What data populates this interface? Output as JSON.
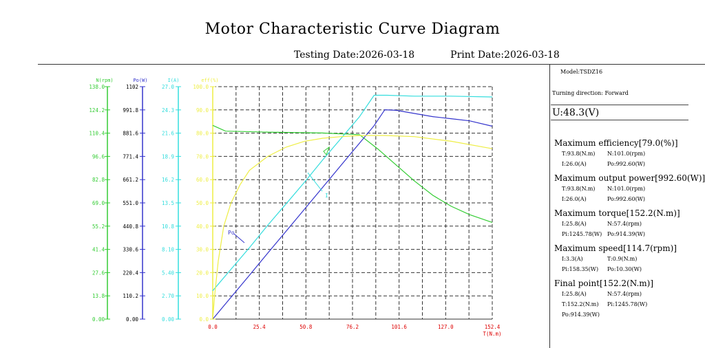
{
  "header": {
    "title": "Motor Characteristic Curve Diagram",
    "testing_date": "Testing Date:2026-03-18",
    "print_date": "Print Date:2026-03-18"
  },
  "panel": {
    "model": "Model:TSDZ16",
    "direction": "Turning direction: Forward",
    "voltage": "U:48.3(V)",
    "sections": [
      {
        "heading": "Maximum efficiency[79.0(%)]",
        "rows": [
          [
            "T:93.8(N.m)",
            "N:101.0(rpm)"
          ],
          [
            "I:26.0(A)",
            "Po:992.60(W)"
          ]
        ]
      },
      {
        "heading": "Maximum output power[992.60(W)]",
        "rows": [
          [
            "T:93.8(N.m)",
            "N:101.0(rpm)"
          ],
          [
            "I:26.0(A)",
            "Po:992.60(W)"
          ]
        ]
      },
      {
        "heading": "Maximum torque[152.2(N.m)]",
        "rows": [
          [
            "I:25.8(A)",
            "N:57.4(rpm)"
          ],
          [
            "Pi:1245.78(W)",
            "Po:914.39(W)"
          ]
        ]
      },
      {
        "heading": "Maximum speed[114.7(rpm)]",
        "rows": [
          [
            "I:3.3(A)",
            "T:0.9(N.m)"
          ],
          [
            "Pi:158.35(W)",
            "Po:10.30(W)"
          ]
        ]
      },
      {
        "heading": "Final point[152.2(N.m)]",
        "rows": [
          [
            "I:25.8(A)",
            "N:57.4(rpm)"
          ],
          [
            "T:152.2(N.m)",
            "Pi:1245.78(W)"
          ],
          [
            "Po:914.39(W)",
            ""
          ]
        ]
      }
    ]
  },
  "colors": {
    "speed": "#33cc33",
    "power": "#3333cc",
    "current": "#33dddd",
    "efficiency": "#eeee44",
    "grid": "#333333",
    "xaxis": "#dd0000"
  },
  "chart_data": {
    "type": "line",
    "xlabel": "T(N.m)",
    "xlim": [
      0,
      152.4
    ],
    "x_ticks": [
      "0.0",
      "25.4",
      "50.8",
      "76.2",
      "101.6",
      "127.0",
      "152.4"
    ],
    "axes": [
      {
        "key": "speed",
        "label": "N(rpm)",
        "ylim": [
          0,
          138.0
        ],
        "ticks": [
          "0.00",
          "13.8",
          "27.6",
          "41.4",
          "55.2",
          "69.0",
          "82.8",
          "96.6",
          "110.4",
          "124.2",
          "138.0"
        ]
      },
      {
        "key": "power",
        "label": "Po(W)",
        "ylim": [
          0,
          1102
        ],
        "ticks": [
          "0.00",
          "110.2",
          "220.4",
          "330.6",
          "440.8",
          "551.0",
          "661.2",
          "771.4",
          "881.6",
          "991.8",
          "1102"
        ]
      },
      {
        "key": "current",
        "label": "I(A)",
        "ylim": [
          0,
          27.0
        ],
        "ticks": [
          "0.00",
          "2.70",
          "5.40",
          "8.10",
          "10.8",
          "13.5",
          "16.2",
          "18.9",
          "21.6",
          "24.3",
          "27.0"
        ]
      },
      {
        "key": "efficiency",
        "label": "eff(%)",
        "ylim": [
          0,
          100.0
        ],
        "ticks": [
          "0.0",
          "10.0",
          "20.0",
          "30.0",
          "40.0",
          "50.0",
          "60.0",
          "70.0",
          "80.0",
          "90.0",
          "100.0"
        ]
      }
    ],
    "series": [
      {
        "key": "speed",
        "x": [
          0,
          7,
          30,
          60,
          70,
          80,
          90,
          100,
          110,
          120,
          130,
          140,
          152.4
        ],
        "y": [
          115,
          111.6,
          111.0,
          110.5,
          110.0,
          109.5,
          101.0,
          91.5,
          82.0,
          73.5,
          67.0,
          62.0,
          57.4
        ]
      },
      {
        "key": "power",
        "x": [
          0,
          10,
          20,
          30,
          40,
          50,
          60,
          70,
          80,
          88,
          93.8,
          100,
          110,
          120,
          130,
          140,
          152.4
        ],
        "y": [
          0,
          104,
          208,
          313,
          417,
          521,
          625,
          730,
          834,
          917,
          992.6,
          990,
          975,
          960,
          950,
          940,
          914.39
        ]
      },
      {
        "key": "current",
        "x": [
          0,
          10,
          20,
          30,
          40,
          50,
          60,
          70,
          80,
          88,
          95,
          110,
          130,
          152.4
        ],
        "y": [
          3.3,
          5.8,
          8.3,
          10.9,
          13.4,
          15.9,
          18.5,
          21.0,
          23.5,
          26.0,
          26.0,
          25.9,
          25.9,
          25.8
        ]
      },
      {
        "key": "efficiency",
        "x": [
          0,
          1,
          3,
          6,
          10,
          15,
          20,
          30,
          40,
          50,
          60,
          70,
          80,
          93.8,
          110,
          130,
          152.4
        ],
        "y": [
          0,
          10,
          25,
          40,
          50,
          58,
          64,
          70,
          74,
          76.5,
          77.8,
          78.5,
          79.0,
          79.0,
          78.5,
          76.5,
          73.3
        ]
      }
    ],
    "annotations": [
      {
        "text": "Po",
        "series": "power"
      },
      {
        "text": "I",
        "series": "current"
      }
    ]
  }
}
